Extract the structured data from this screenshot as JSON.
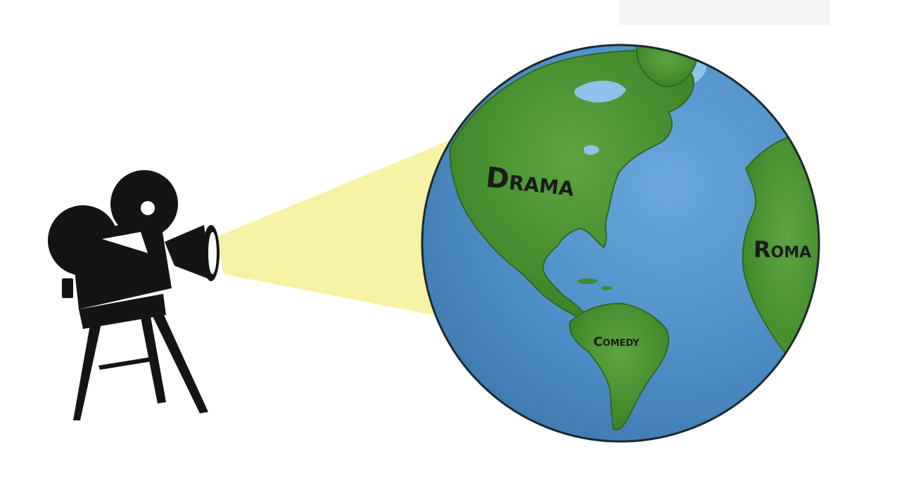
{
  "labels": {
    "drama": "Drama",
    "roma": "Roma",
    "comedy": "Comedy"
  },
  "colors": {
    "background": "#ffffff",
    "ocean": "#4f8fc6",
    "ocean_light": "#8dc3ea",
    "land": "#3f8a2c",
    "land_light": "#6fb24a",
    "outline": "#1c2a2e",
    "beam": "#f7f1a6",
    "camera": "#141414"
  },
  "icons": {
    "camera": "movie-camera-icon",
    "globe": "globe-icon"
  }
}
